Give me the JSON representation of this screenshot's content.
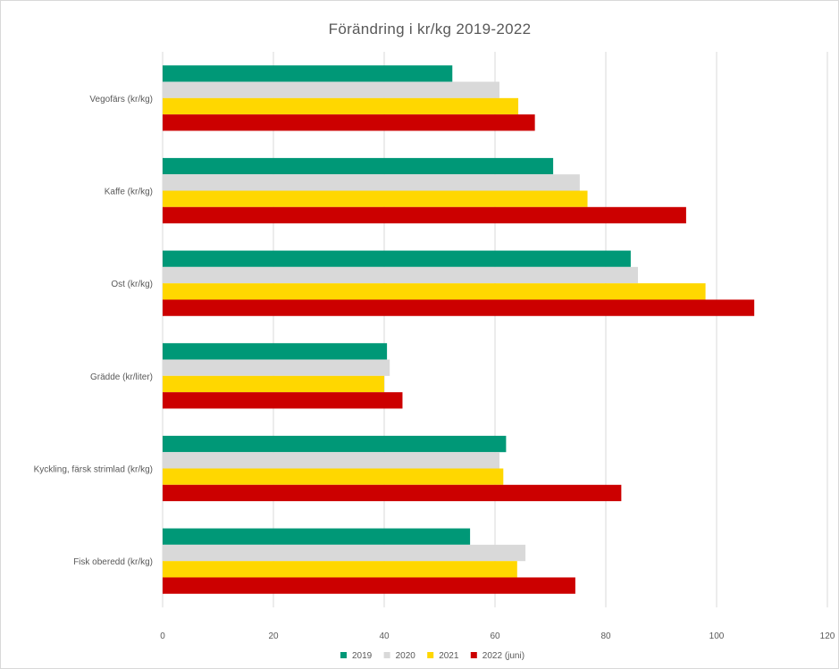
{
  "chart_data": {
    "type": "bar",
    "orientation": "horizontal",
    "title": "Förändring i kr/kg 2019-2022",
    "xlabel": "",
    "ylabel": "",
    "xlim": [
      0,
      120
    ],
    "x_ticks": [
      0,
      20,
      40,
      60,
      80,
      100,
      120
    ],
    "grid": true,
    "legend_position": "bottom",
    "categories": [
      "Vegofärs (kr/kg)",
      "Kaffe (kr/kg)",
      "Ost (kr/kg)",
      "Grädde (kr/liter)",
      "Kyckling, färsk strimlad (kr/kg)",
      "Fisk oberedd (kr/kg)"
    ],
    "series": [
      {
        "name": "2019",
        "color": "#009877",
        "values": [
          52.3,
          70.5,
          84.5,
          40.5,
          62.0,
          55.5
        ]
      },
      {
        "name": "2020",
        "color": "#d9d9d9",
        "values": [
          60.8,
          75.3,
          85.8,
          41.0,
          60.8,
          65.5
        ]
      },
      {
        "name": "2021",
        "color": "#ffd700",
        "values": [
          64.2,
          76.7,
          98.0,
          40.0,
          61.5,
          64.0
        ]
      },
      {
        "name": "2022 (juni)",
        "color": "#cc0000",
        "values": [
          67.2,
          94.5,
          106.8,
          43.3,
          82.8,
          74.5
        ]
      }
    ]
  }
}
